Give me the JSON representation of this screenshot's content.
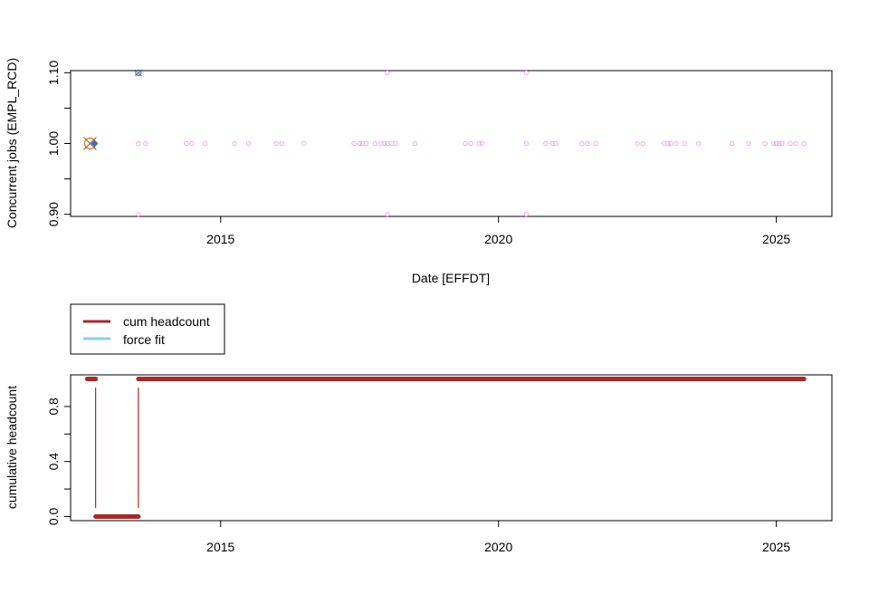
{
  "chart_data": [
    {
      "type": "scatter",
      "xlabel": "Date [EFFDT]",
      "ylabel": "Concurrent jobs (EMPL_RCD)",
      "xlim": [
        2012.3,
        2026.0
      ],
      "ylim": [
        0.897,
        1.103
      ],
      "x_ticks": [
        2015,
        2020,
        2025
      ],
      "y_ticks": [
        0.9,
        0.95,
        1.0,
        1.05,
        1.1
      ],
      "y_tick_labels": [
        "0.90",
        "",
        "1.00",
        "",
        "1.10"
      ],
      "colors": {
        "points": "#f59af0",
        "special_circle": "#e0701e",
        "special_x": "#8b5a2b",
        "special_fill": "#3c6fb4",
        "teal_x": "#2e8b8b"
      },
      "series": [
        {
          "marker": "open-circle",
          "x": [
            2013.52,
            2013.65,
            2014.38,
            2014.48,
            2014.72,
            2015.25,
            2015.5,
            2016.0,
            2016.1,
            2016.5,
            2017.4,
            2017.5,
            2017.55,
            2017.62,
            2017.78,
            2017.88,
            2017.95,
            2018.0,
            2018.08,
            2018.15,
            2018.5,
            2019.4,
            2019.5,
            2019.65,
            2019.7,
            2020.5,
            2020.85,
            2020.97,
            2021.03,
            2021.5,
            2021.6,
            2021.75,
            2022.5,
            2022.6,
            2022.98,
            2023.05,
            2023.1,
            2023.2,
            2023.35,
            2023.6,
            2024.2,
            2024.5,
            2024.8,
            2024.95,
            2025.0,
            2025.05,
            2025.1,
            2025.25,
            2025.35,
            2025.5
          ],
          "y": [
            1.0,
            1.0,
            1.0,
            1.0,
            1.0,
            1.0,
            1.0,
            1.0,
            1.0,
            1.0,
            1.0,
            1.0,
            1.0,
            1.0,
            1.0,
            1.0,
            1.0,
            1.0,
            1.0,
            1.0,
            1.0,
            1.0,
            1.0,
            1.0,
            1.0,
            1.0,
            1.0,
            1.0,
            1.0,
            1.0,
            1.0,
            1.0,
            1.0,
            1.0,
            1.0,
            1.0,
            1.0,
            1.0,
            1.0,
            1.0,
            1.0,
            1.0,
            1.0,
            1.0,
            1.0,
            1.0,
            1.0,
            1.0,
            1.0,
            1.0
          ]
        },
        {
          "marker": "open-circle",
          "x": [
            2013.52,
            2018.0,
            2020.5,
            2013.52,
            2018.0,
            2020.5
          ],
          "y": [
            1.1,
            1.1,
            1.1,
            0.9,
            0.9,
            0.9
          ]
        },
        {
          "marker": "special",
          "x": [
            2012.65,
            2013.52
          ],
          "y": [
            1.0,
            1.1
          ]
        }
      ]
    },
    {
      "type": "line",
      "xlabel": "",
      "ylabel": "cumulative headcount",
      "xlim": [
        2012.3,
        2026.0
      ],
      "ylim": [
        -0.03,
        1.03
      ],
      "x_ticks": [
        2015,
        2020,
        2025
      ],
      "y_ticks": [
        0.0,
        0.2,
        0.4,
        0.6,
        0.8
      ],
      "y_tick_labels": [
        "0.0",
        "",
        "0.4",
        "",
        "0.8"
      ],
      "legend": {
        "position": "top-left",
        "entries": [
          "cum headcount",
          "force fit"
        ]
      },
      "series": [
        {
          "name": "cum headcount",
          "color": "#a52a2a",
          "x": [
            2012.6,
            2012.75,
            2012.75,
            2013.52,
            2013.52,
            2025.5
          ],
          "y": [
            1.0,
            1.0,
            0.0,
            0.0,
            1.0,
            1.0
          ]
        },
        {
          "name": "force fit",
          "color": "#87ceeb",
          "x": [],
          "y": []
        }
      ]
    }
  ]
}
